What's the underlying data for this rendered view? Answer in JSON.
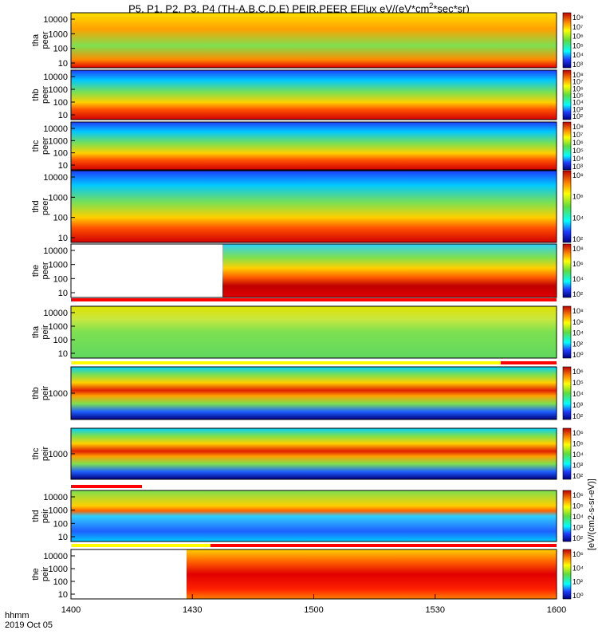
{
  "title_text": "P5, P1, P2, P3, P4 (TH-A,B,C,D,E) PEIR,PEER EFlux eV/(eV*cm",
  "title_sup": "2",
  "title_tail": "*sec*sr)",
  "footer": {
    "hhmm": "hhmm",
    "date": "2019 Oct 05"
  },
  "colorbar_caption": "[eV/(cm2-s-sr-eV)]",
  "colors": {
    "dark_red": "#8b0000",
    "red": "#e00000",
    "orange": "#ff8c00",
    "yellow": "#ffff00",
    "green": "#5ddc3c",
    "cyan": "#00ffff",
    "blue": "#1e3cff",
    "navy": "#000080"
  },
  "chart_data": {
    "type": "heatmap",
    "x_axis": {
      "ticks": [
        "1400",
        "1430",
        "1500",
        "1530",
        "1600"
      ],
      "range": [
        "1400",
        "1600"
      ]
    },
    "panels": [
      {
        "probe": "tha",
        "species": "peer",
        "ylabel": [
          "tha",
          "peer"
        ],
        "yticks": [
          "10000",
          "1000",
          "100",
          "10"
        ],
        "colorbar_ticks": [
          "10⁸",
          "10⁷",
          "10⁶",
          "10⁵",
          "10⁴",
          "10³"
        ]
      },
      {
        "probe": "thb",
        "species": "peer",
        "ylabel": [
          "thb",
          "peer"
        ],
        "yticks": [
          "10000",
          "1000",
          "100",
          "10"
        ],
        "colorbar_ticks": [
          "10⁸",
          "10⁷",
          "10⁶",
          "10⁵",
          "10⁴",
          "10³",
          "10²"
        ]
      },
      {
        "probe": "thc",
        "species": "peer",
        "ylabel": [
          "thc",
          "peer"
        ],
        "yticks": [
          "10000",
          "1000",
          "100",
          "10"
        ],
        "colorbar_ticks": [
          "10⁸",
          "10⁷",
          "10⁶",
          "10⁵",
          "10⁴",
          "10³"
        ]
      },
      {
        "probe": "thd",
        "species": "peer",
        "ylabel": [
          "thd",
          "peer"
        ],
        "yticks": [
          "10000",
          "1000",
          "100",
          "10"
        ],
        "colorbar_ticks": [
          "10⁸",
          "10⁶",
          "10⁴",
          "10²"
        ]
      },
      {
        "probe": "the",
        "species": "peer",
        "ylabel": [
          "the",
          "peer"
        ],
        "yticks": [
          "10000",
          "1000",
          "100",
          "10"
        ],
        "colorbar_ticks": [
          "10⁸",
          "10⁶",
          "10⁴",
          "10²"
        ]
      },
      {
        "probe": "tha",
        "species": "peir",
        "ylabel": [
          "tha",
          "peir"
        ],
        "yticks": [
          "10000",
          "1000",
          "100",
          "10"
        ],
        "colorbar_ticks": [
          "10⁸",
          "10⁶",
          "10⁴",
          "10²",
          "10⁰"
        ]
      },
      {
        "probe": "thb",
        "species": "peir",
        "ylabel": [
          "thb",
          "peir"
        ],
        "yticks": [
          "1000"
        ],
        "colorbar_ticks": [
          "10⁶",
          "10⁵",
          "10⁴",
          "10³",
          "10²"
        ]
      },
      {
        "probe": "thc",
        "species": "peir",
        "ylabel": [
          "thc",
          "peir"
        ],
        "yticks": [
          "1000"
        ],
        "colorbar_ticks": [
          "10⁶",
          "10⁵",
          "10⁴",
          "10³",
          "10²"
        ]
      },
      {
        "probe": "thd",
        "species": "peir",
        "ylabel": [
          "thd",
          "peir"
        ],
        "yticks": [
          "10000",
          "1000",
          "100",
          "10"
        ],
        "colorbar_ticks": [
          "10⁶",
          "10⁵",
          "10⁴",
          "10³",
          "10²"
        ]
      },
      {
        "probe": "the",
        "species": "peir",
        "ylabel": [
          "the",
          "peir"
        ],
        "yticks": [
          "10000",
          "1000",
          "100",
          "10"
        ],
        "colorbar_ticks": [
          "10⁶",
          "10⁴",
          "10²",
          "10⁰"
        ]
      }
    ]
  }
}
